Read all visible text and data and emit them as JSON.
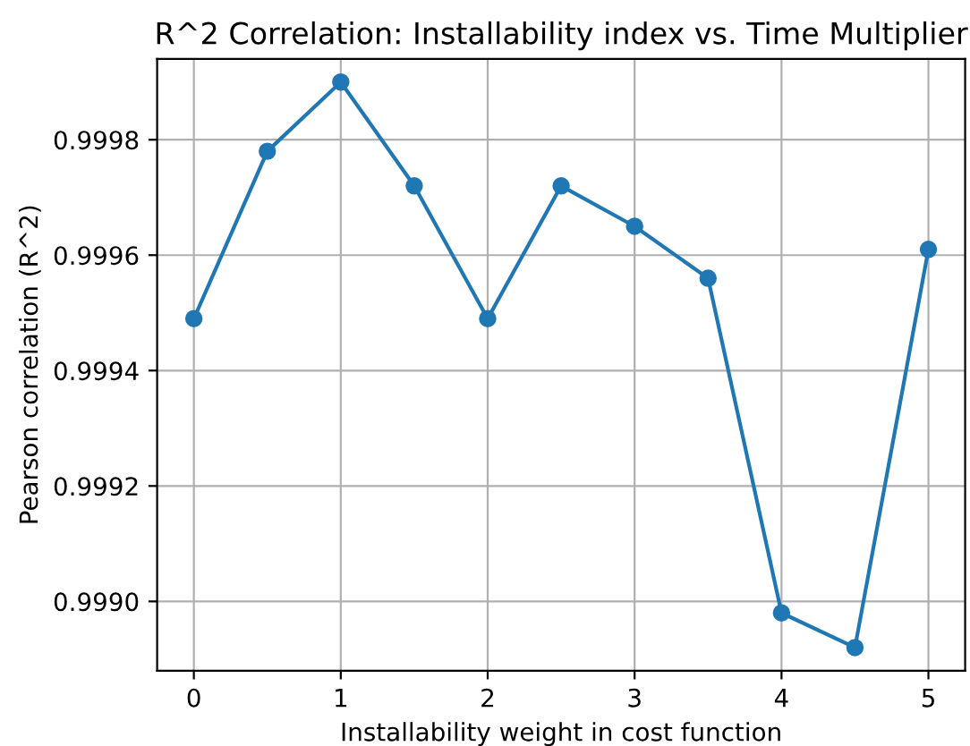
{
  "chart_data": {
    "type": "line",
    "title": "R^2 Correlation: Installability index vs. Time Multiplier",
    "xlabel": "Installability weight in cost function",
    "ylabel": "Pearson correlation (R^2)",
    "x": [
      0,
      0.5,
      1,
      1.5,
      2,
      2.5,
      3,
      3.5,
      4,
      4.5,
      5
    ],
    "series": [
      {
        "color": "#1f77b4",
        "values": [
          0.99949,
          0.99978,
          0.9999,
          0.99972,
          0.99949,
          0.99972,
          0.99965,
          0.99956,
          0.99898,
          0.99892,
          0.99961
        ]
      }
    ],
    "xlim": [
      -0.25,
      5.25
    ],
    "xticks": [
      0,
      1,
      2,
      3,
      4,
      5
    ],
    "ylim": [
      0.99888,
      0.99994
    ],
    "yticks": [
      {
        "value": 0.999,
        "label": "0.9990"
      },
      {
        "value": 0.9992,
        "label": "0.9992"
      },
      {
        "value": 0.9994,
        "label": "0.9994"
      },
      {
        "value": 0.9996,
        "label": "0.9996"
      },
      {
        "value": 0.9998,
        "label": "0.9998"
      }
    ],
    "grid": true,
    "marker": "circle",
    "line_style": "solid"
  }
}
